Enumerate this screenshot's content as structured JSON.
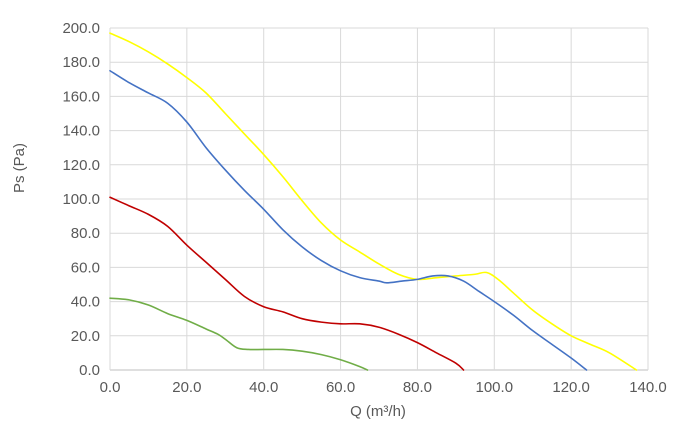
{
  "chart_data": {
    "type": "line",
    "title": "",
    "xlabel": "Q (m³/h)",
    "ylabel": "Ps (Pa)",
    "xlim": [
      0,
      140
    ],
    "ylim": [
      0,
      200
    ],
    "x_ticks": [
      "0.0",
      "20.0",
      "40.0",
      "60.0",
      "80.0",
      "100.0",
      "120.0",
      "140.0"
    ],
    "y_ticks": [
      "0.0",
      "20.0",
      "40.0",
      "60.0",
      "80.0",
      "100.0",
      "120.0",
      "140.0",
      "160.0",
      "180.0",
      "200.0"
    ],
    "grid": true,
    "legend": "none",
    "series": [
      {
        "color": "#ffff00",
        "points": [
          [
            0,
            197
          ],
          [
            5,
            192
          ],
          [
            10,
            186
          ],
          [
            15,
            179
          ],
          [
            20,
            171
          ],
          [
            25,
            162
          ],
          [
            30,
            150
          ],
          [
            35,
            138
          ],
          [
            40,
            126
          ],
          [
            45,
            113
          ],
          [
            50,
            99
          ],
          [
            55,
            86
          ],
          [
            60,
            76
          ],
          [
            65,
            69
          ],
          [
            70,
            62
          ],
          [
            75,
            56
          ],
          [
            80,
            53
          ],
          [
            85,
            54
          ],
          [
            90,
            55
          ],
          [
            95,
            56
          ],
          [
            98,
            57
          ],
          [
            101,
            53
          ],
          [
            105,
            45
          ],
          [
            110,
            35
          ],
          [
            115,
            27
          ],
          [
            120,
            20
          ],
          [
            125,
            15
          ],
          [
            130,
            10
          ],
          [
            137,
            0
          ]
        ]
      },
      {
        "color": "#4472c4",
        "points": [
          [
            0,
            175
          ],
          [
            5,
            168
          ],
          [
            10,
            162
          ],
          [
            15,
            156
          ],
          [
            20,
            145
          ],
          [
            25,
            130
          ],
          [
            30,
            117
          ],
          [
            35,
            105
          ],
          [
            40,
            94
          ],
          [
            45,
            82
          ],
          [
            50,
            72
          ],
          [
            55,
            64
          ],
          [
            60,
            58
          ],
          [
            65,
            54
          ],
          [
            70,
            52
          ],
          [
            72,
            51
          ],
          [
            76,
            52
          ],
          [
            80,
            53
          ],
          [
            84,
            55
          ],
          [
            88,
            55
          ],
          [
            92,
            52
          ],
          [
            96,
            46
          ],
          [
            100,
            40
          ],
          [
            105,
            32
          ],
          [
            110,
            23
          ],
          [
            115,
            15
          ],
          [
            120,
            7
          ],
          [
            124,
            0
          ]
        ]
      },
      {
        "color": "#c00000",
        "points": [
          [
            0,
            101
          ],
          [
            5,
            96
          ],
          [
            10,
            91
          ],
          [
            15,
            84
          ],
          [
            20,
            73
          ],
          [
            25,
            63
          ],
          [
            30,
            53
          ],
          [
            35,
            43
          ],
          [
            40,
            37
          ],
          [
            45,
            34
          ],
          [
            50,
            30
          ],
          [
            55,
            28
          ],
          [
            60,
            27
          ],
          [
            65,
            27
          ],
          [
            70,
            25
          ],
          [
            75,
            21
          ],
          [
            80,
            16
          ],
          [
            85,
            10
          ],
          [
            90,
            4
          ],
          [
            92,
            0
          ]
        ]
      },
      {
        "color": "#70ad47",
        "points": [
          [
            0,
            42
          ],
          [
            5,
            41
          ],
          [
            10,
            38
          ],
          [
            15,
            33
          ],
          [
            20,
            29
          ],
          [
            25,
            24
          ],
          [
            28,
            21
          ],
          [
            30,
            18
          ],
          [
            33,
            13
          ],
          [
            36,
            12
          ],
          [
            40,
            12
          ],
          [
            45,
            12
          ],
          [
            50,
            11
          ],
          [
            55,
            9
          ],
          [
            60,
            6
          ],
          [
            65,
            2
          ],
          [
            67,
            0
          ]
        ]
      }
    ]
  }
}
